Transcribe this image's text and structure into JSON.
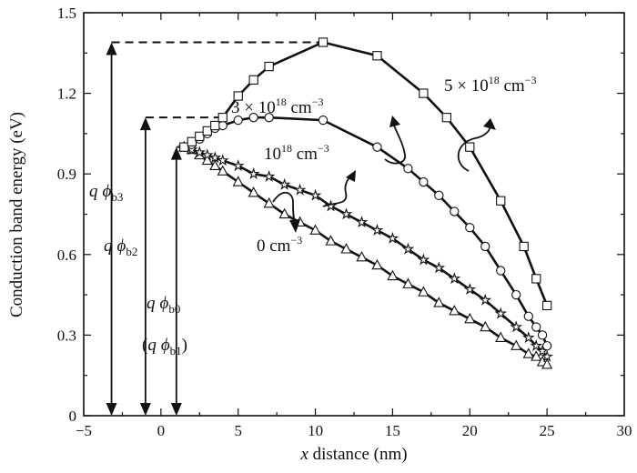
{
  "chart_data": {
    "type": "line",
    "xlabel": "x distance (nm)",
    "ylabel": "Conduction band energy (eV)",
    "xlim": [
      -5,
      30
    ],
    "ylim": [
      0,
      1.5
    ],
    "xticks": [
      "−5",
      "0",
      "5",
      "10",
      "15",
      "20",
      "25",
      "30"
    ],
    "yticks": [
      "0",
      "0.3",
      "0.6",
      "0.9",
      "1.2",
      "1.5"
    ],
    "grid": false,
    "series": [
      {
        "name": "0 cm−3",
        "marker": "triangle",
        "x": [
          1.5,
          2.0,
          2.5,
          3.0,
          3.5,
          4.0,
          5.0,
          6.0,
          7.0,
          8.0,
          9.0,
          10.0,
          11.0,
          12.0,
          13.0,
          14.0,
          15.0,
          16.0,
          17.0,
          18.0,
          19.0,
          20.0,
          21.0,
          22.0,
          23.0,
          23.8,
          24.3,
          24.7,
          25.0
        ],
        "y": [
          1.0,
          0.99,
          0.97,
          0.95,
          0.93,
          0.91,
          0.87,
          0.83,
          0.79,
          0.75,
          0.72,
          0.69,
          0.65,
          0.62,
          0.59,
          0.56,
          0.52,
          0.49,
          0.46,
          0.42,
          0.39,
          0.36,
          0.33,
          0.29,
          0.26,
          0.23,
          0.22,
          0.2,
          0.19
        ]
      },
      {
        "name": "1018 cm−3",
        "marker": "star",
        "x": [
          1.5,
          2.0,
          2.5,
          3.0,
          3.5,
          4.0,
          5.0,
          6.0,
          7.0,
          8.0,
          9.0,
          10.0,
          11.0,
          12.0,
          13.0,
          14.0,
          15.0,
          16.0,
          17.0,
          18.0,
          19.0,
          20.0,
          21.0,
          22.0,
          23.0,
          23.8,
          24.3,
          24.7,
          25.0
        ],
        "y": [
          1.0,
          0.99,
          0.98,
          0.97,
          0.96,
          0.95,
          0.93,
          0.9,
          0.89,
          0.86,
          0.84,
          0.82,
          0.78,
          0.75,
          0.72,
          0.69,
          0.66,
          0.62,
          0.58,
          0.55,
          0.51,
          0.47,
          0.43,
          0.38,
          0.33,
          0.29,
          0.26,
          0.24,
          0.22
        ]
      },
      {
        "name": "3 × 1018 cm−3",
        "marker": "circle",
        "x": [
          1.5,
          2.0,
          2.5,
          3.0,
          3.5,
          4.0,
          5.0,
          6.0,
          7.0,
          10.5,
          14.0,
          16.0,
          17.0,
          18.0,
          19.0,
          20.0,
          21.0,
          22.0,
          23.0,
          23.8,
          24.3,
          24.7,
          25.0
        ],
        "y": [
          1.0,
          1.01,
          1.03,
          1.05,
          1.07,
          1.08,
          1.1,
          1.11,
          1.11,
          1.1,
          1.0,
          0.92,
          0.87,
          0.82,
          0.76,
          0.7,
          0.63,
          0.54,
          0.45,
          0.37,
          0.33,
          0.3,
          0.26
        ]
      },
      {
        "name": "5 × 1018 cm−3",
        "marker": "square",
        "x": [
          1.5,
          2.0,
          2.5,
          3.0,
          3.5,
          4.0,
          5.0,
          6.0,
          7.0,
          10.5,
          14.0,
          17.0,
          18.5,
          20.0,
          22.0,
          23.5,
          24.3,
          25.0
        ],
        "y": [
          1.0,
          1.02,
          1.04,
          1.06,
          1.08,
          1.11,
          1.19,
          1.25,
          1.3,
          1.39,
          1.34,
          1.2,
          1.11,
          1.0,
          0.8,
          0.63,
          0.51,
          0.41
        ]
      }
    ],
    "annotations": {
      "qphi_b3": {
        "q": "q",
        "phi": "ϕ",
        "sub": "b3",
        "value": 1.39,
        "x": -3.2
      },
      "qphi_b2": {
        "q": "q",
        "phi": "ϕ",
        "sub": "b2",
        "value": 1.11,
        "x": -1.0
      },
      "qphi_b0": {
        "q": "q",
        "phi": "ϕ",
        "sub": "b0",
        "value": 1.0,
        "x": 1.0
      },
      "qphi_b1": {
        "open": "(",
        "q": "q",
        "phi": "ϕ",
        "sub": "b1",
        "close": ")"
      },
      "label_0": {
        "text": "0 cm",
        "sup": "−3"
      },
      "label_1e18": {
        "base": "10",
        "exp": "18",
        "unit": " cm",
        "sup": "−3"
      },
      "label_3e18": {
        "coef": "3 × 10",
        "exp": "18",
        "unit": " cm",
        "sup": "−3"
      },
      "label_5e18": {
        "coef": "5 × 10",
        "exp": "18",
        "unit": " cm",
        "sup": "−3"
      }
    }
  }
}
